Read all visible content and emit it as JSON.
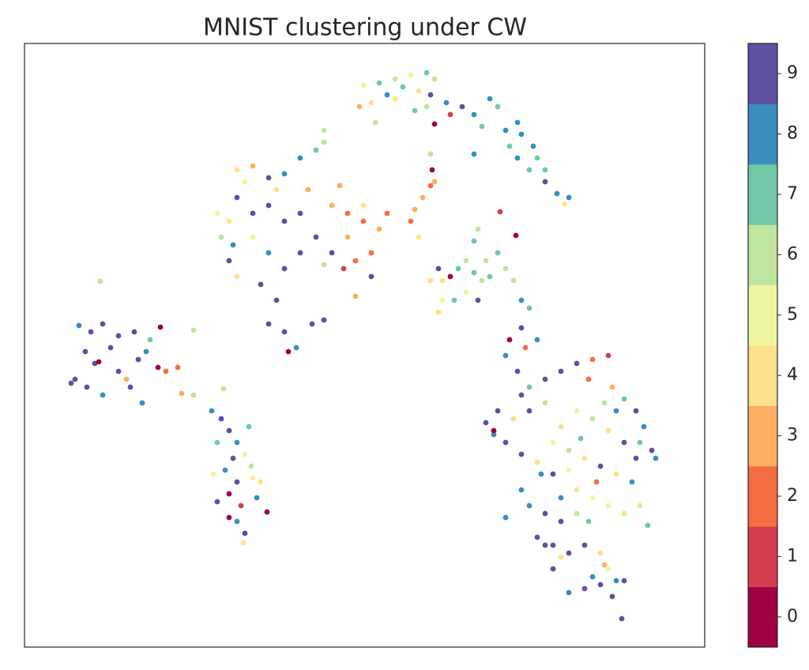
{
  "chart_data": {
    "type": "scatter",
    "title": "MNIST clustering under CW",
    "xlim": [
      0,
      861
    ],
    "ylim": [
      0,
      764
    ],
    "x": [
      69,
      84,
      99,
      119,
      139,
      159,
      172,
      77,
      89,
      64,
      79,
      99,
      119,
      134,
      149,
      109,
      154,
      169,
      179,
      194,
      199,
      214,
      214,
      129,
      96,
      94,
      144,
      59,
      237,
      249,
      259,
      269,
      279,
      239,
      254,
      269,
      289,
      299,
      244,
      259,
      274,
      294,
      259,
      269,
      279,
      277,
      307,
      252,
      244,
      284,
      264,
      287,
      269,
      289,
      309,
      329,
      349,
      369,
      379,
      379,
      399,
      389,
      409,
      429,
      449,
      439,
      419,
      409,
      439,
      419,
      244,
      249,
      259,
      269,
      289,
      309,
      329,
      349,
      369,
      289,
      309,
      329,
      299,
      319,
      309,
      329,
      344,
      334,
      379,
      364,
      279,
      259,
      359,
      319,
      269,
      389,
      349,
      379,
      404,
      459,
      429,
      264,
      429,
      449,
      469,
      489,
      509,
      519,
      439,
      459,
      479,
      499,
      424,
      444,
      494,
      509,
      514,
      519,
      469,
      534,
      554,
      569,
      589,
      599,
      609,
      629,
      644,
      624,
      639,
      659,
      674,
      689,
      684,
      579,
      569,
      539,
      659,
      649,
      624,
      614,
      514,
      516,
      514,
      504,
      494,
      489,
      499,
      519,
      602,
      622,
      524,
      529,
      539,
      549,
      559,
      569,
      579,
      589,
      609,
      574,
      569,
      599,
      619,
      629,
      639,
      524,
      529,
      544,
      559,
      574,
      514,
      584,
      629,
      614,
      634,
      649,
      609,
      624,
      639,
      659,
      679,
      699,
      719,
      739,
      744,
      759,
      774,
      784,
      794,
      799,
      779,
      759,
      739,
      719,
      699,
      679,
      659,
      639,
      619,
      599,
      584,
      594,
      609,
      629,
      649,
      669,
      689,
      709,
      729,
      749,
      769,
      779,
      789,
      759,
      739,
      719,
      699,
      679,
      659,
      639,
      629,
      649,
      669,
      689,
      709,
      729,
      739,
      734,
      719,
      709,
      729,
      749,
      759,
      744,
      756,
      669,
      679,
      659,
      679,
      699,
      714,
      724,
      704,
      734,
      669,
      689,
      629,
      654,
      594,
      714,
      749,
      774,
      609,
      689
    ],
    "y": [
      407,
      399,
      409,
      394,
      399,
      389,
      405,
      374,
      359,
      339,
      329,
      319,
      349,
      329,
      309,
      379,
      374,
      354,
      349,
      354,
      321,
      319,
      401,
      339,
      463,
      361,
      364,
      334,
      299,
      289,
      274,
      259,
      244,
      219,
      224,
      209,
      214,
      209,
      184,
      194,
      179,
      189,
      164,
      159,
      144,
      132,
      171,
      327,
      259,
      279,
      239,
      229,
      604,
      609,
      594,
      599,
      619,
      629,
      639,
      654,
      584,
      559,
      549,
      539,
      529,
      499,
      489,
      519,
      469,
      444,
      549,
      519,
      489,
      569,
      549,
      559,
      539,
      549,
      519,
      519,
      499,
      479,
      459,
      439,
      409,
      399,
      379,
      374,
      414,
      409,
      589,
      539,
      579,
      579,
      469,
      499,
      499,
      484,
      479,
      549,
      559,
      509,
      711,
      714,
      719,
      724,
      727,
      719,
      689,
      699,
      709,
      704,
      684,
      664,
      679,
      684,
      699,
      662,
      694,
      689,
      684,
      674,
      694,
      684,
      654,
      649,
      634,
      619,
      604,
      589,
      574,
      569,
      561,
      659,
      624,
      674,
      604,
      619,
      664,
      634,
      624,
      604,
      584,
      569,
      554,
      539,
      519,
      589,
      551,
      521,
      479,
      464,
      469,
      479,
      489,
      474,
      464,
      469,
      479,
      529,
      514,
      499,
      464,
      439,
      429,
      424,
      439,
      439,
      449,
      439,
      464,
      489,
      404,
      389,
      379,
      389,
      369,
      349,
      329,
      339,
      349,
      359,
      364,
      369,
      329,
      314,
      299,
      279,
      249,
      239,
      259,
      259,
      274,
      289,
      299,
      279,
      309,
      299,
      289,
      299,
      284,
      269,
      259,
      244,
      234,
      219,
      224,
      239,
      229,
      219,
      209,
      179,
      154,
      169,
      179,
      189,
      199,
      189,
      169,
      179,
      199,
      139,
      129,
      119,
      129,
      119,
      99,
      104,
      89,
      74,
      79,
      84,
      84,
      64,
      36,
      99,
      114,
      129,
      159,
      169,
      159,
      209,
      264,
      309,
      259,
      249,
      319,
      219,
      274,
      339,
      299,
      239,
      164,
      69
    ],
    "digit": [
      8,
      9,
      9,
      9,
      9,
      7,
      0,
      9,
      9,
      9,
      9,
      8,
      9,
      9,
      8,
      9,
      8,
      0,
      2,
      2,
      3,
      6,
      6,
      3,
      6,
      0,
      9,
      9,
      8,
      9,
      9,
      8,
      5,
      5,
      8,
      9,
      5,
      4,
      9,
      0,
      1,
      8,
      0,
      8,
      9,
      4,
      0,
      6,
      7,
      7,
      9,
      6,
      4,
      3,
      9,
      8,
      8,
      7,
      6,
      6,
      3,
      3,
      2,
      2,
      3,
      2,
      2,
      3,
      9,
      3,
      5,
      6,
      9,
      9,
      9,
      9,
      9,
      9,
      9,
      5,
      8,
      9,
      9,
      9,
      9,
      9,
      8,
      0,
      9,
      9,
      5,
      4,
      3,
      4,
      4,
      9,
      9,
      6,
      1,
      2,
      4,
      8,
      5,
      7,
      6,
      5,
      7,
      6,
      4,
      8,
      7,
      4,
      3,
      6,
      7,
      6,
      9,
      0,
      4,
      8,
      9,
      8,
      8,
      7,
      8,
      8,
      8,
      8,
      7,
      9,
      8,
      8,
      4,
      7,
      8,
      1,
      7,
      7,
      8,
      7,
      6,
      0,
      2,
      3,
      3,
      2,
      4,
      3,
      1,
      0,
      9,
      4,
      0,
      7,
      6,
      7,
      6,
      7,
      6,
      6,
      7,
      7,
      6,
      8,
      7,
      4,
      5,
      7,
      5,
      9,
      4,
      6,
      9,
      0,
      2,
      8,
      8,
      9,
      7,
      9,
      9,
      9,
      2,
      1,
      3,
      7,
      9,
      8,
      9,
      8,
      7,
      9,
      4,
      6,
      5,
      4,
      6,
      9,
      4,
      9,
      9,
      8,
      9,
      9,
      4,
      9,
      5,
      4,
      9,
      4,
      8,
      4,
      7,
      4,
      5,
      5,
      4,
      8,
      9,
      8,
      8,
      9,
      9,
      9,
      9,
      4,
      5,
      3,
      8,
      9,
      9,
      8,
      9,
      9,
      9,
      9,
      4,
      9,
      9,
      6,
      7,
      2,
      7,
      6,
      5,
      6,
      9,
      8,
      0,
      2,
      8,
      9,
      8,
      8
    ],
    "colorbar": {
      "lim": [
        -0.5,
        9.5
      ],
      "ticks": [
        0,
        1,
        2,
        3,
        4,
        5,
        6,
        7,
        8,
        9
      ],
      "colors": [
        "#9e0142",
        "#d53e4f",
        "#f46d43",
        "#fdae61",
        "#fee08b",
        "#eef5a0",
        "#bfe5a0",
        "#72c7a6",
        "#3a8dbf",
        "#5e4fa2"
      ]
    }
  }
}
